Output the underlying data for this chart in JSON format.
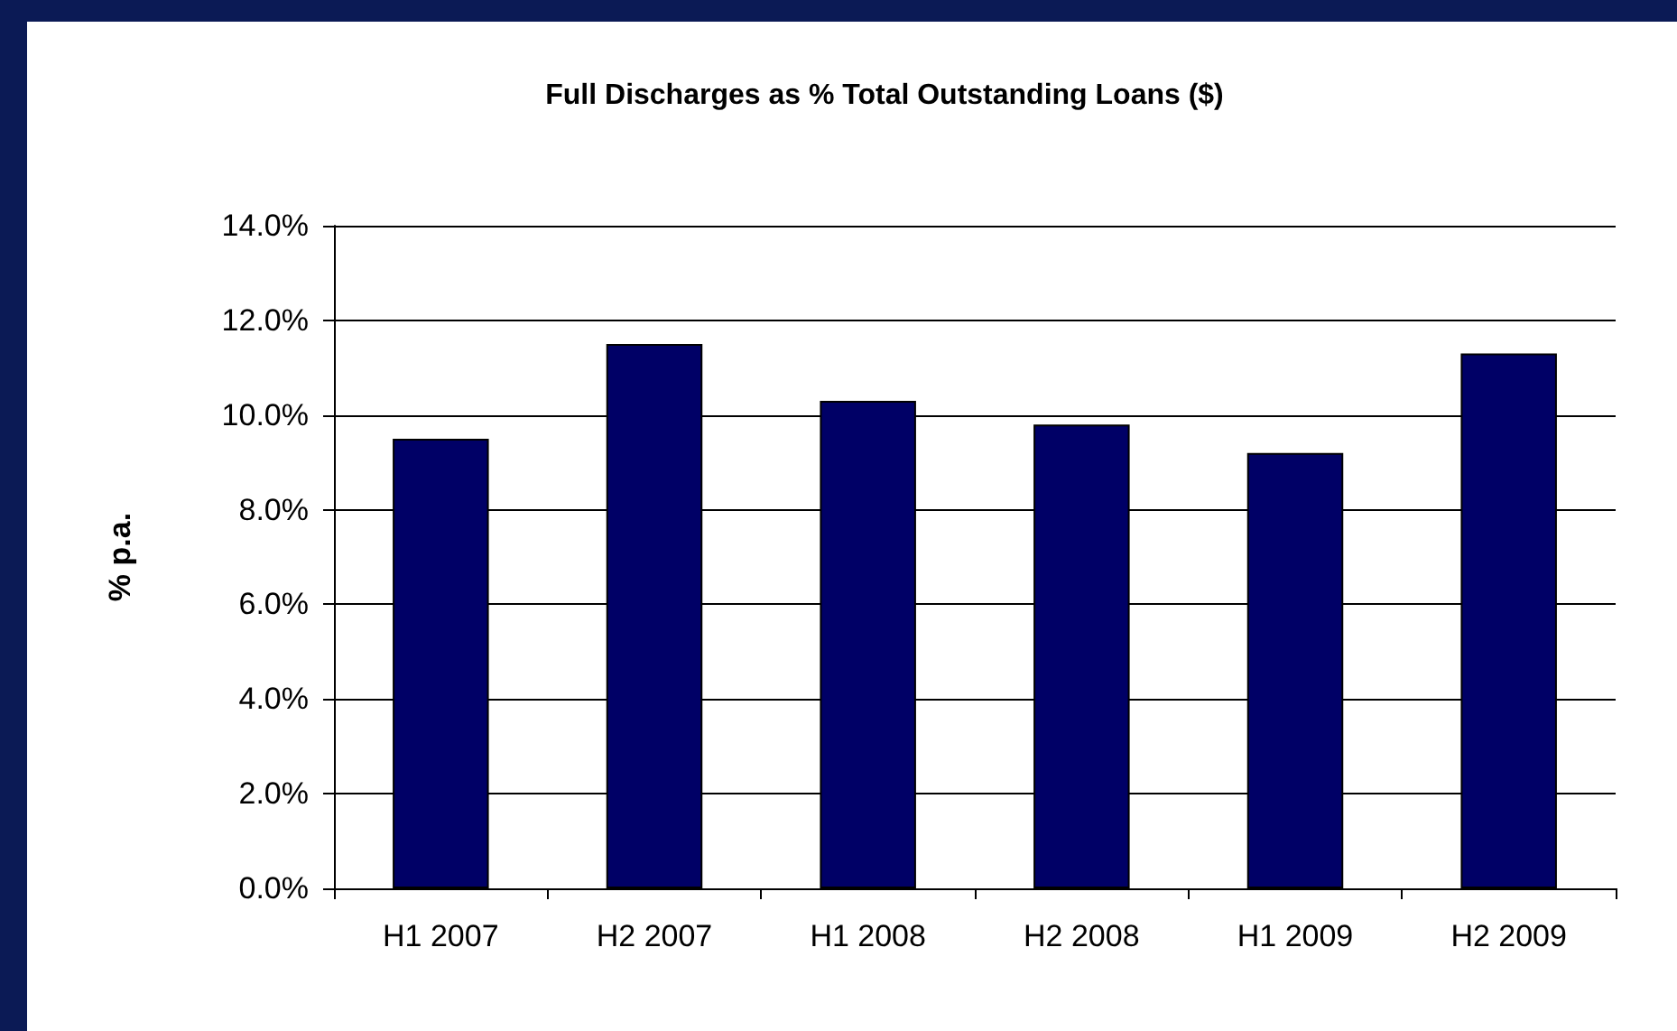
{
  "chart_data": {
    "type": "bar",
    "title": "Full Discharges as % Total Outstanding Loans ($)",
    "ylabel": "% p.a.",
    "categories": [
      "H1 2007",
      "H2 2007",
      "H1 2008",
      "H2 2008",
      "H1 2009",
      "H2 2009"
    ],
    "values": [
      9.5,
      11.5,
      10.3,
      9.8,
      9.2,
      11.3
    ],
    "color": "#000066",
    "ylim": [
      0,
      14
    ],
    "yticks": [
      {
        "value": 0,
        "label": "0.0%"
      },
      {
        "value": 2,
        "label": "2.0%"
      },
      {
        "value": 4,
        "label": "4.0%"
      },
      {
        "value": 6,
        "label": "6.0%"
      },
      {
        "value": 8,
        "label": "8.0%"
      },
      {
        "value": 10,
        "label": "10.0%"
      },
      {
        "value": 12,
        "label": "12.0%"
      },
      {
        "value": 14,
        "label": "14.0%"
      }
    ],
    "grid": "y"
  }
}
